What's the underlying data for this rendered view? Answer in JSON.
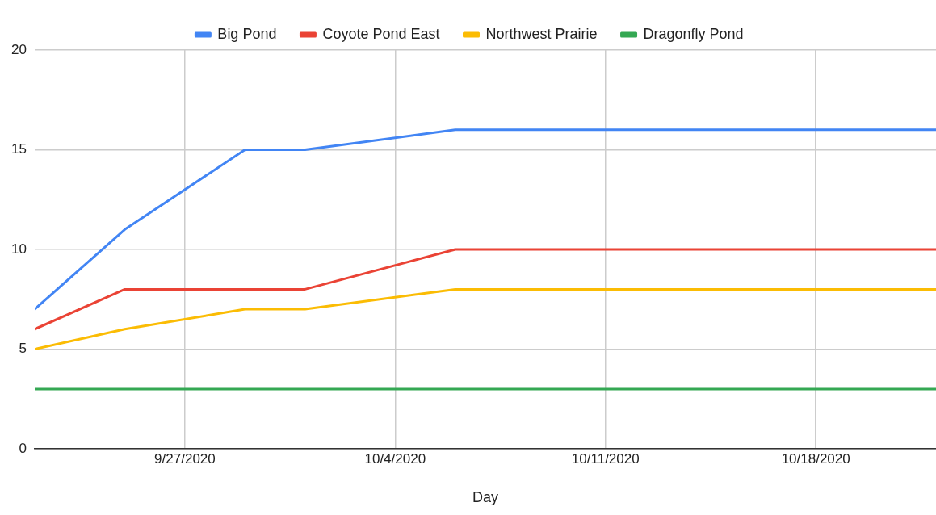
{
  "chart_data": {
    "type": "line",
    "xlabel": "Day",
    "x": [
      "2020-09-22",
      "2020-09-25",
      "2020-09-29",
      "2020-10-01",
      "2020-10-06",
      "2020-10-22"
    ],
    "series": [
      {
        "name": "Big Pond",
        "color": "#4285f4",
        "values": [
          7,
          11,
          15,
          15,
          16,
          16
        ]
      },
      {
        "name": "Coyote Pond East",
        "color": "#ea4335",
        "values": [
          6,
          8,
          8,
          8,
          10,
          10
        ]
      },
      {
        "name": "Northwest Prairie",
        "color": "#fbbc04",
        "values": [
          5,
          6,
          7,
          7,
          8,
          8
        ]
      },
      {
        "name": "Dragonfly Pond",
        "color": "#34a853",
        "values": [
          3,
          3,
          3,
          3,
          3,
          3
        ]
      }
    ],
    "xlim": [
      "2020-09-22",
      "2020-10-22"
    ],
    "xticks": [
      {
        "value": "2020-09-27",
        "label": "9/27/2020"
      },
      {
        "value": "2020-10-04",
        "label": "10/4/2020"
      },
      {
        "value": "2020-10-11",
        "label": "10/11/2020"
      },
      {
        "value": "2020-10-18",
        "label": "10/18/2020"
      }
    ],
    "ylim": [
      0,
      20
    ],
    "yticks": [
      0,
      5,
      10,
      15,
      20
    ],
    "grid": true,
    "legend": "top",
    "marker": "none",
    "line_style": "solid"
  }
}
